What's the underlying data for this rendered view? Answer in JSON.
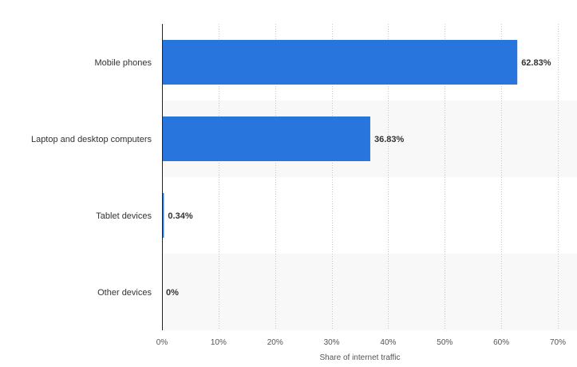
{
  "chart_data": {
    "type": "bar",
    "orientation": "horizontal",
    "categories": [
      "Mobile phones",
      "Laptop and desktop computers",
      "Tablet devices",
      "Other devices"
    ],
    "values": [
      62.83,
      36.83,
      0.34,
      0
    ],
    "data_labels": [
      "62.83%",
      "36.83%",
      "0.34%",
      "0%"
    ],
    "xlabel": "Share of internet traffic",
    "ylabel": "",
    "xlim": [
      0,
      70
    ],
    "x_ticks": [
      0,
      10,
      20,
      30,
      40,
      50,
      60,
      70
    ],
    "x_tick_labels": [
      "0%",
      "10%",
      "20%",
      "30%",
      "40%",
      "50%",
      "60%",
      "70%"
    ],
    "grid": "vertical-dotted",
    "legend": "none",
    "bar_color": "#2876dd",
    "alternate_band_color": "#f8f8f8"
  }
}
